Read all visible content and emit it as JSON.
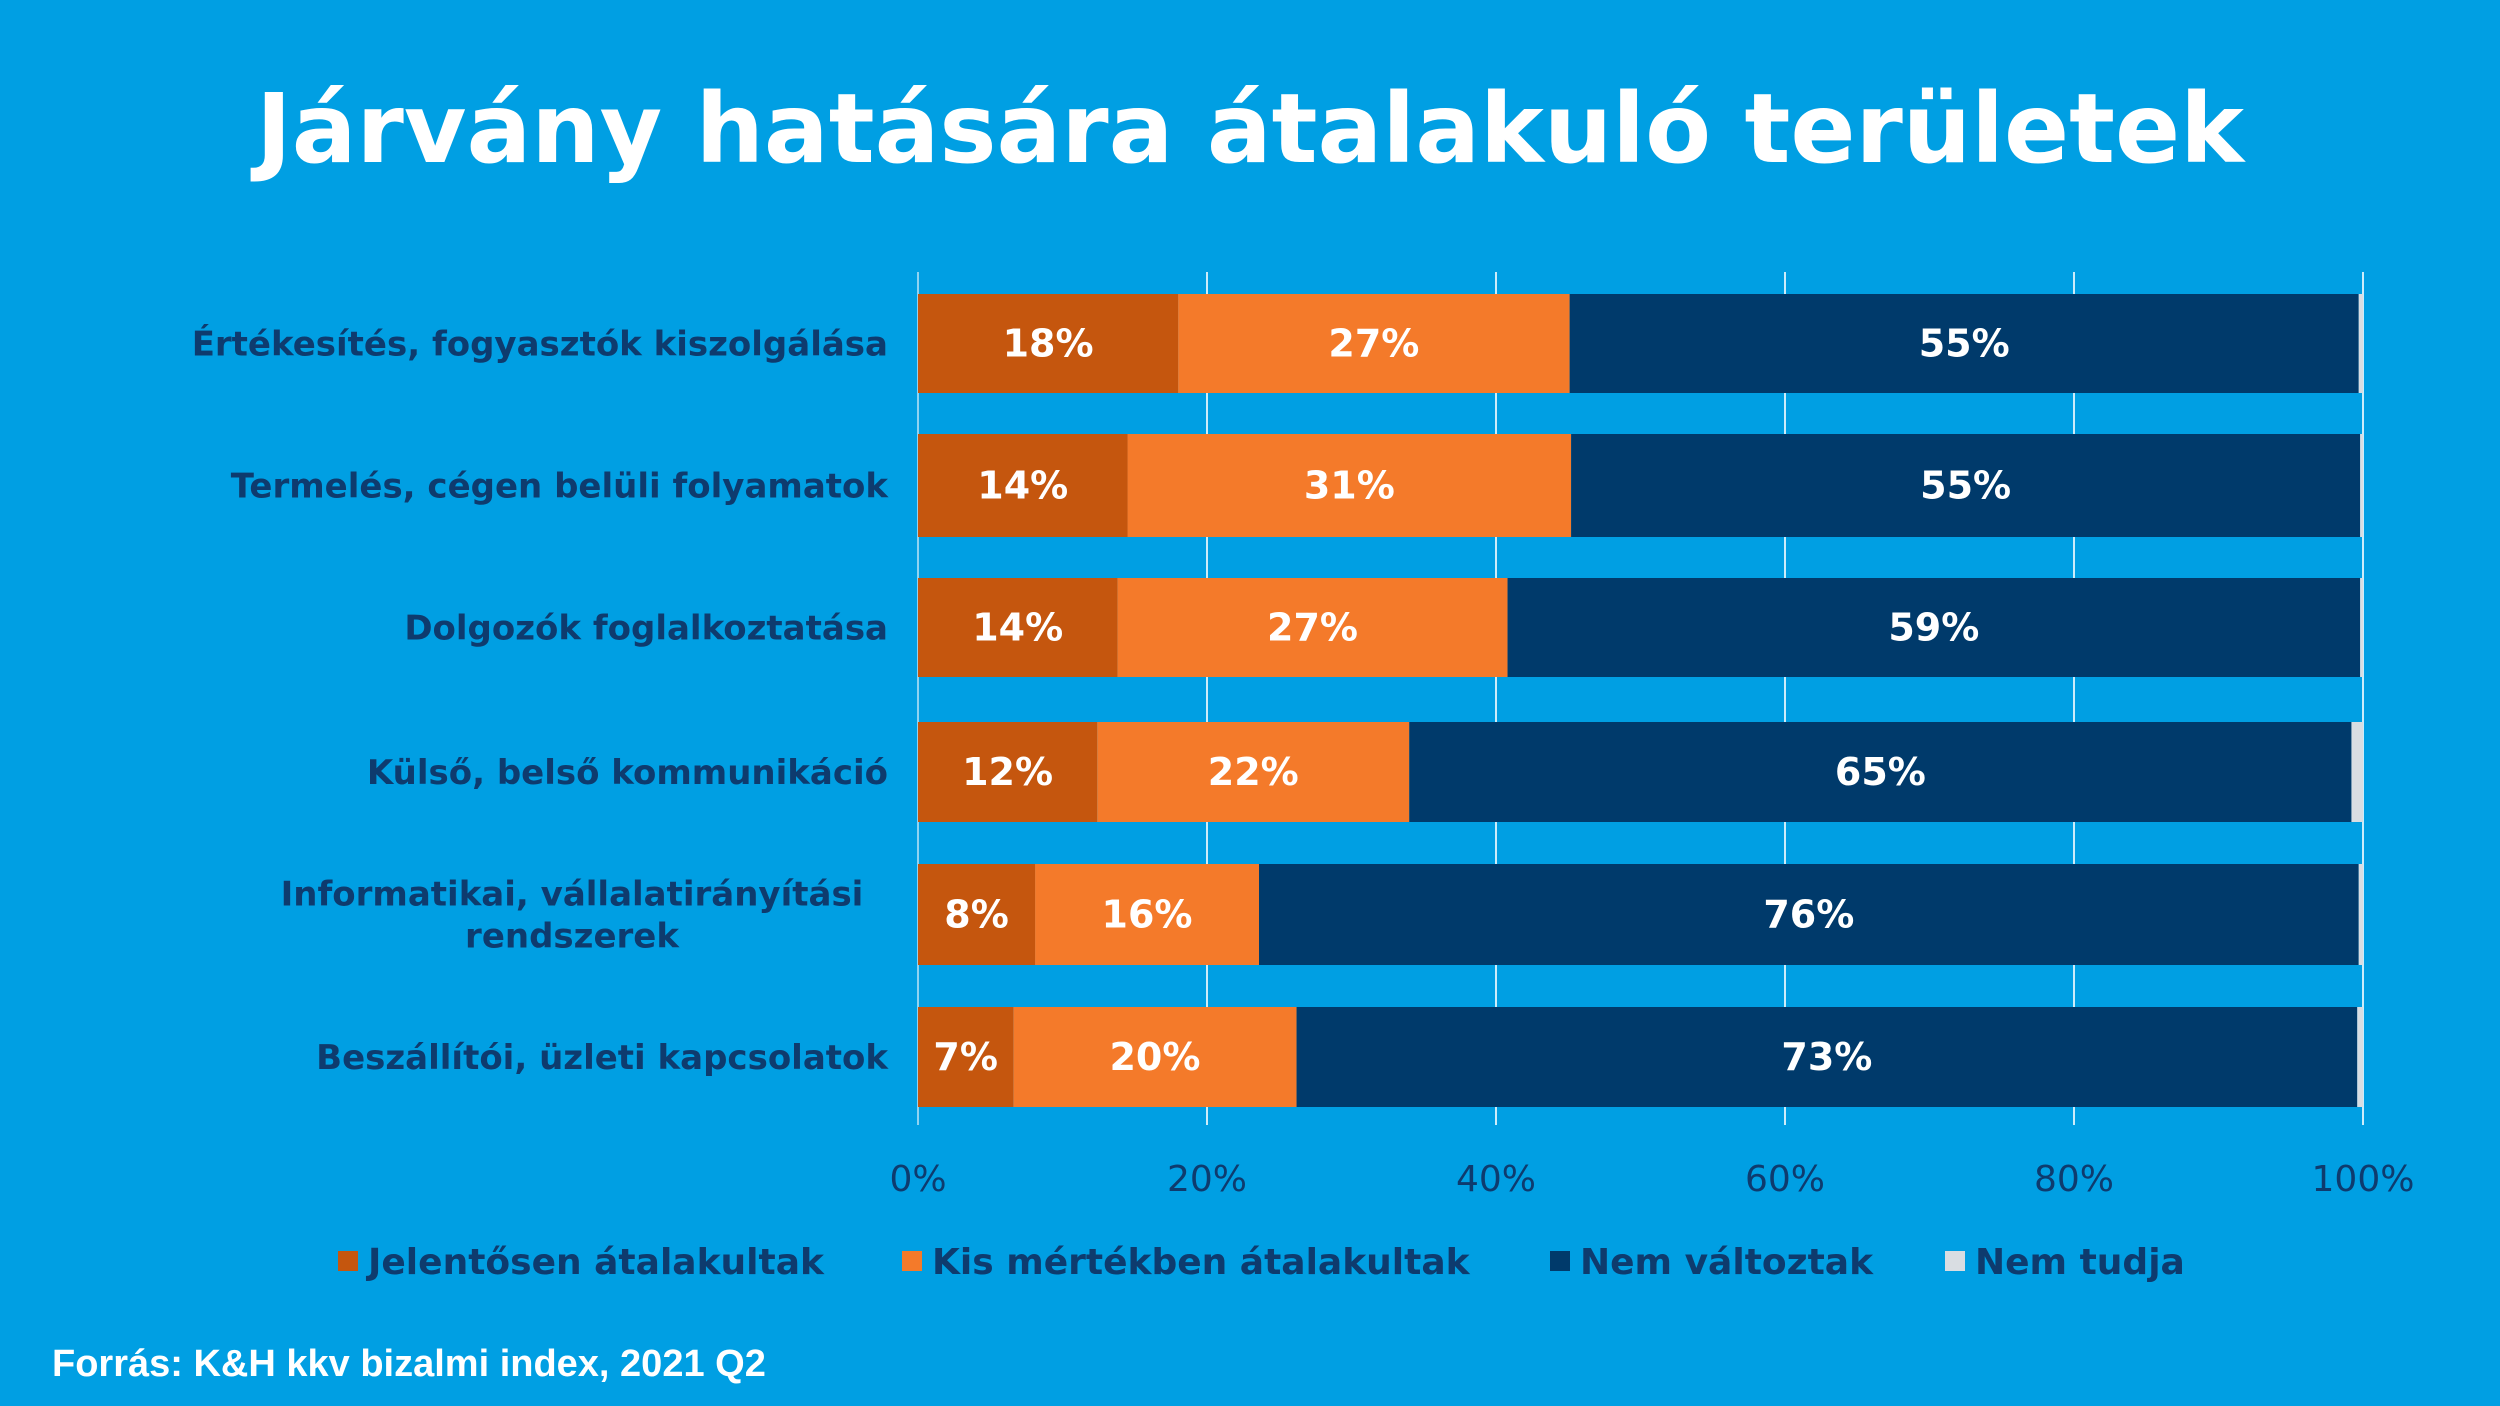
{
  "chart_data": {
    "type": "bar",
    "orientation": "horizontal",
    "stacked": true,
    "title": "Járvány hatására átalakuló területek",
    "categories": [
      [
        "Értékesítés, fogyasztók kiszolgálása"
      ],
      [
        "Termelés, cégen belüli folyamatok"
      ],
      [
        "Dolgozók foglalkoztatása"
      ],
      [
        "Külső, belső kommunikáció"
      ],
      [
        "Informatikai, vállalatirányítási",
        "rendszerek"
      ],
      [
        "Beszállítói, üzleti kapcsolatok"
      ]
    ],
    "series": [
      {
        "name": "Jelentősen átalakultak",
        "color": "#C5560E",
        "values": [
          18,
          14.5,
          13.8,
          12.4,
          8.1,
          6.6
        ],
        "labels": [
          "18%",
          "14%",
          "14%",
          "12%",
          "8%",
          "7%"
        ]
      },
      {
        "name": "Kis mértékben átalakultak",
        "color": "#F47A2A",
        "values": [
          27.1,
          30.7,
          27,
          21.6,
          15.5,
          19.6
        ],
        "labels": [
          "27%",
          "31%",
          "27%",
          "22%",
          "16%",
          "20%"
        ]
      },
      {
        "name": "Nem változtak",
        "color": "#003A6B",
        "values": [
          54.6,
          54.6,
          59,
          65.2,
          76.1,
          73.4
        ],
        "labels": [
          "55%",
          "55%",
          "59%",
          "65%",
          "76%",
          "73%"
        ]
      },
      {
        "name": "Nem tudja",
        "color": "#D9DDE2",
        "values": [
          0.3,
          0.2,
          0.2,
          0.8,
          0.3,
          0.4
        ],
        "labels": [
          "",
          "",
          "",
          "",
          "",
          ""
        ]
      }
    ],
    "xlim": [
      0,
      100
    ],
    "x_ticks": [
      "0%",
      "20%",
      "40%",
      "60%",
      "80%",
      "100%"
    ],
    "grid": true,
    "legend_position": "bottom",
    "source": "Forrás: K&H kkv bizalmi index, 2021 Q2"
  }
}
